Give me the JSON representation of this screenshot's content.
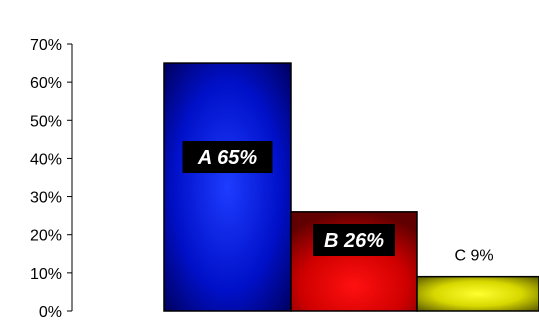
{
  "chart_data": {
    "type": "bar",
    "categories": [
      "A",
      "B",
      "C"
    ],
    "values": [
      65,
      26,
      9
    ],
    "data_labels": [
      "A 65%",
      "B 26%",
      "C 9%"
    ],
    "ylim": [
      0,
      70
    ],
    "y_ticks": [
      "0%",
      "10%",
      "20%",
      "30%",
      "40%",
      "50%",
      "60%",
      "70%"
    ],
    "grid": false,
    "legend": "none",
    "colors": {
      "A": "#0000ff",
      "B": "#e00000",
      "C": "#e0e000"
    }
  }
}
